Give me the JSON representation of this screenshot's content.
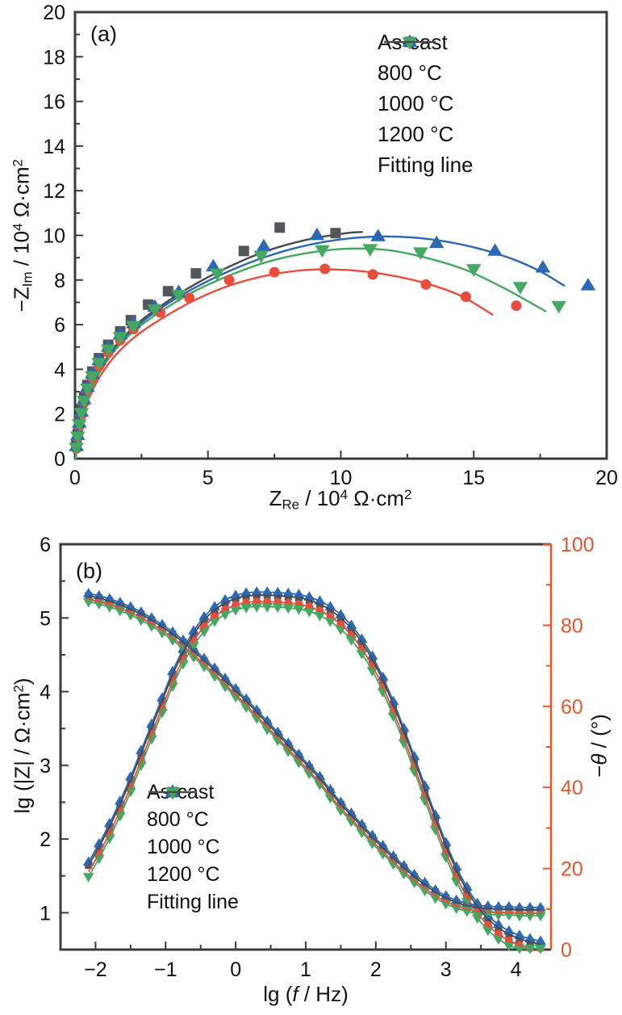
{
  "figure": {
    "background": "#ffffff"
  },
  "colors": {
    "as_cast": "#53575a",
    "c800": "#ea4d3b",
    "c1000": "#2d68b4",
    "c1200": "#45a861",
    "fit_line": "#4a4a4a",
    "axis": "#3c3c3c",
    "right_axis": "#e8542c",
    "text": "#111111"
  },
  "chart_data": [
    {
      "id": "a",
      "type": "scatter",
      "panel_label": "(a)",
      "xlabel_segments": [
        [
          "Z",
          ""
        ],
        [
          "Re",
          "sub"
        ],
        [
          " / 10",
          ""
        ],
        [
          "4",
          "sup"
        ],
        [
          " Ω·cm",
          ""
        ],
        [
          "2",
          "sup"
        ]
      ],
      "ylabel_segments": [
        [
          "−Z",
          ""
        ],
        [
          "Im",
          "sub"
        ],
        [
          " / 10",
          ""
        ],
        [
          "4",
          "sup"
        ],
        [
          " Ω·cm",
          ""
        ],
        [
          "2",
          "sup"
        ]
      ],
      "xlim": [
        0,
        20
      ],
      "ylim": [
        0,
        20
      ],
      "x_ticks": [
        0,
        5,
        10,
        15,
        20
      ],
      "x_minor_step": 2.5,
      "y_ticks": [
        0,
        2,
        4,
        6,
        8,
        10,
        12,
        14,
        16,
        18,
        20
      ],
      "y_minor_step": 1,
      "grid": false,
      "legend_position": "upper-right-inside",
      "legend": [
        {
          "label": "As-cast",
          "marker": "square",
          "color_key": "as_cast"
        },
        {
          "label": "800 °C",
          "marker": "circle",
          "color_key": "c800"
        },
        {
          "label": "1000 °C",
          "marker": "triangle-up",
          "color_key": "c1000"
        },
        {
          "label": "1200 °C",
          "marker": "triangle-down",
          "color_key": "c1200"
        },
        {
          "label": "Fitting line",
          "marker": "line",
          "color_key": "fit_line"
        }
      ],
      "series": [
        {
          "name": "As-cast",
          "marker": "square",
          "color_key": "as_cast",
          "fit_color_key": "fit_line",
          "points": [
            [
              0.05,
              0.6
            ],
            [
              0.1,
              1.1
            ],
            [
              0.16,
              1.65
            ],
            [
              0.24,
              2.2
            ],
            [
              0.34,
              2.75
            ],
            [
              0.47,
              3.3
            ],
            [
              0.65,
              3.9
            ],
            [
              0.9,
              4.5
            ],
            [
              1.25,
              5.1
            ],
            [
              1.7,
              5.7
            ],
            [
              2.1,
              6.2
            ],
            [
              2.75,
              6.9
            ],
            [
              3.5,
              7.5
            ],
            [
              4.55,
              8.3
            ],
            [
              6.35,
              9.3
            ],
            [
              7.7,
              10.35
            ],
            [
              9.8,
              10.1
            ]
          ],
          "fit": [
            [
              0.02,
              0
            ],
            [
              0.1,
              1.0
            ],
            [
              0.25,
              1.9
            ],
            [
              0.5,
              2.9
            ],
            [
              0.9,
              3.9
            ],
            [
              1.5,
              5.0
            ],
            [
              2.3,
              6.0
            ],
            [
              3.3,
              6.9
            ],
            [
              4.5,
              7.8
            ],
            [
              5.8,
              8.6
            ],
            [
              7.2,
              9.3
            ],
            [
              8.7,
              9.8
            ],
            [
              10.2,
              10.1
            ],
            [
              10.8,
              10.15
            ]
          ]
        },
        {
          "name": "800 °C",
          "marker": "circle",
          "color_key": "c800",
          "fit_color_key": "c800",
          "points": [
            [
              0.05,
              0.45
            ],
            [
              0.1,
              0.95
            ],
            [
              0.16,
              1.45
            ],
            [
              0.24,
              1.95
            ],
            [
              0.34,
              2.5
            ],
            [
              0.47,
              3.0
            ],
            [
              0.65,
              3.6
            ],
            [
              0.9,
              4.15
            ],
            [
              1.25,
              4.75
            ],
            [
              1.7,
              5.3
            ],
            [
              2.2,
              5.8
            ],
            [
              3.2,
              6.55
            ],
            [
              4.3,
              7.2
            ],
            [
              5.8,
              8.0
            ],
            [
              7.5,
              8.35
            ],
            [
              9.4,
              8.5
            ],
            [
              11.2,
              8.25
            ],
            [
              13.2,
              7.8
            ],
            [
              14.7,
              7.25
            ],
            [
              16.6,
              6.85
            ]
          ],
          "fit": [
            [
              0.02,
              0
            ],
            [
              0.1,
              0.85
            ],
            [
              0.25,
              1.7
            ],
            [
              0.5,
              2.65
            ],
            [
              0.9,
              3.6
            ],
            [
              1.5,
              4.6
            ],
            [
              2.3,
              5.5
            ],
            [
              3.3,
              6.3
            ],
            [
              4.5,
              7.1
            ],
            [
              5.8,
              7.75
            ],
            [
              7.2,
              8.2
            ],
            [
              8.7,
              8.45
            ],
            [
              10.2,
              8.45
            ],
            [
              11.7,
              8.25
            ],
            [
              13.2,
              7.85
            ],
            [
              14.5,
              7.3
            ],
            [
              15.7,
              6.45
            ]
          ]
        },
        {
          "name": "1000 °C",
          "marker": "triangle-up",
          "color_key": "c1000",
          "fit_color_key": "c1000",
          "points": [
            [
              0.05,
              0.55
            ],
            [
              0.1,
              1.05
            ],
            [
              0.16,
              1.6
            ],
            [
              0.24,
              2.1
            ],
            [
              0.34,
              2.65
            ],
            [
              0.47,
              3.2
            ],
            [
              0.65,
              3.8
            ],
            [
              0.9,
              4.4
            ],
            [
              1.25,
              5.0
            ],
            [
              1.7,
              5.55
            ],
            [
              2.2,
              6.05
            ],
            [
              3.0,
              6.8
            ],
            [
              3.9,
              7.45
            ],
            [
              5.2,
              8.6
            ],
            [
              7.1,
              9.5
            ],
            [
              9.1,
              10.0
            ],
            [
              11.4,
              9.95
            ],
            [
              13.6,
              9.65
            ],
            [
              15.8,
              9.3
            ],
            [
              17.6,
              8.55
            ],
            [
              19.3,
              7.75
            ]
          ],
          "fit": [
            [
              0.02,
              0
            ],
            [
              0.1,
              0.95
            ],
            [
              0.25,
              1.85
            ],
            [
              0.5,
              2.85
            ],
            [
              0.9,
              3.85
            ],
            [
              1.5,
              4.9
            ],
            [
              2.3,
              5.9
            ],
            [
              3.3,
              6.8
            ],
            [
              4.5,
              7.65
            ],
            [
              5.8,
              8.4
            ],
            [
              7.2,
              9.05
            ],
            [
              8.7,
              9.55
            ],
            [
              10.2,
              9.85
            ],
            [
              11.7,
              9.95
            ],
            [
              13.2,
              9.85
            ],
            [
              14.7,
              9.55
            ],
            [
              16.2,
              9.05
            ],
            [
              17.4,
              8.45
            ],
            [
              18.4,
              7.75
            ]
          ]
        },
        {
          "name": "1200 °C",
          "marker": "triangle-down",
          "color_key": "c1200",
          "fit_color_key": "c1200",
          "points": [
            [
              0.05,
              0.5
            ],
            [
              0.1,
              1.0
            ],
            [
              0.16,
              1.55
            ],
            [
              0.24,
              2.05
            ],
            [
              0.34,
              2.6
            ],
            [
              0.47,
              3.15
            ],
            [
              0.65,
              3.7
            ],
            [
              0.9,
              4.3
            ],
            [
              1.25,
              4.9
            ],
            [
              1.7,
              5.45
            ],
            [
              2.2,
              5.95
            ],
            [
              3.0,
              6.7
            ],
            [
              3.9,
              7.35
            ],
            [
              5.35,
              8.3
            ],
            [
              7.0,
              9.1
            ],
            [
              9.3,
              9.35
            ],
            [
              11.1,
              9.4
            ],
            [
              13.0,
              9.25
            ],
            [
              15.0,
              8.5
            ],
            [
              16.75,
              7.7
            ],
            [
              18.2,
              6.85
            ]
          ],
          "fit": [
            [
              0.02,
              0
            ],
            [
              0.1,
              0.9
            ],
            [
              0.25,
              1.8
            ],
            [
              0.5,
              2.8
            ],
            [
              0.9,
              3.8
            ],
            [
              1.5,
              4.85
            ],
            [
              2.3,
              5.8
            ],
            [
              3.3,
              6.65
            ],
            [
              4.5,
              7.5
            ],
            [
              5.8,
              8.2
            ],
            [
              7.2,
              8.8
            ],
            [
              8.7,
              9.2
            ],
            [
              10.2,
              9.4
            ],
            [
              11.7,
              9.35
            ],
            [
              13.2,
              9.0
            ],
            [
              14.7,
              8.45
            ],
            [
              16.2,
              7.6
            ],
            [
              17.7,
              6.6
            ]
          ]
        }
      ]
    },
    {
      "id": "b",
      "type": "line-scatter",
      "panel_label": "(b)",
      "xlabel_segments": [
        [
          "lg (",
          ""
        ],
        [
          "f",
          "italic"
        ],
        [
          " / Hz)",
          ""
        ]
      ],
      "ylabel_left_segments": [
        [
          "lg (|Z| / Ω·cm",
          ""
        ],
        [
          "2",
          "sup"
        ],
        [
          ")",
          ""
        ]
      ],
      "ylabel_right_segments": [
        [
          "−",
          ""
        ],
        [
          "θ",
          "italic"
        ],
        [
          " / (°)",
          ""
        ]
      ],
      "xlim": [
        -2.5,
        4.5
      ],
      "ylim_left": [
        0.5,
        6
      ],
      "ylim_right": [
        0,
        100
      ],
      "x_ticks": [
        -2,
        -1,
        0,
        1,
        2,
        3,
        4
      ],
      "x_minor_step": 0.5,
      "y_left_ticks": [
        1,
        2,
        3,
        4,
        5,
        6
      ],
      "y_left_minor_step": 0.5,
      "y_right_ticks": [
        0,
        20,
        40,
        60,
        80,
        100
      ],
      "y_right_minor_step": 10,
      "grid": false,
      "legend_position": "lower-center-inside",
      "legend": [
        {
          "label": "As-cast",
          "marker": "square",
          "color_key": "as_cast"
        },
        {
          "label": "800 °C",
          "marker": "circle",
          "color_key": "c800"
        },
        {
          "label": "1000 °C",
          "marker": "triangle-up",
          "color_key": "c1000"
        },
        {
          "label": "1200 °C",
          "marker": "triangle-down",
          "color_key": "c1200"
        },
        {
          "label": "Fitting line",
          "marker": "line",
          "color_key": "fit_line"
        }
      ],
      "x": [
        -2.1,
        -1.95,
        -1.8,
        -1.65,
        -1.5,
        -1.35,
        -1.2,
        -1.05,
        -0.9,
        -0.75,
        -0.6,
        -0.45,
        -0.3,
        -0.15,
        0,
        0.15,
        0.3,
        0.45,
        0.6,
        0.75,
        0.9,
        1.05,
        1.2,
        1.35,
        1.5,
        1.65,
        1.8,
        1.95,
        2.1,
        2.25,
        2.4,
        2.55,
        2.7,
        2.85,
        3,
        3.15,
        3.3,
        3.45,
        3.6,
        3.75,
        3.9,
        4.05,
        4.2,
        4.35
      ],
      "lgZ": [
        5.28,
        5.25,
        5.21,
        5.16,
        5.1,
        5.03,
        4.95,
        4.86,
        4.76,
        4.65,
        4.53,
        4.4,
        4.27,
        4.13,
        3.99,
        3.85,
        3.7,
        3.55,
        3.4,
        3.25,
        3.1,
        2.95,
        2.8,
        2.62,
        2.45,
        2.3,
        2.15,
        2,
        1.86,
        1.72,
        1.59,
        1.47,
        1.36,
        1.26,
        1.18,
        1.12,
        1.08,
        1.05,
        1.04,
        1.03,
        1.03,
        1.02,
        1.02,
        1.02
      ],
      "theta": [
        20,
        24.5,
        29.5,
        35,
        41,
        47.5,
        54,
        60.5,
        67,
        72.5,
        77,
        80.5,
        83,
        84.7,
        85.8,
        86.4,
        86.6,
        86.6,
        86.5,
        86.3,
        86,
        85.4,
        84.4,
        83,
        81,
        78.4,
        75,
        70.8,
        65.6,
        59.6,
        53,
        46,
        38.8,
        31.6,
        24.8,
        18.8,
        13.8,
        9.8,
        6.8,
        4.6,
        3,
        1.9,
        1.1,
        0.5
      ],
      "series": [
        {
          "name": "As-cast",
          "marker": "square",
          "color_key": "as_cast",
          "fit_color_key": "fit_line",
          "dz": 0.02,
          "dtheta": 0.8,
          "x_skip": 0
        },
        {
          "name": "800 °C",
          "marker": "circle",
          "color_key": "c800",
          "fit_color_key": "c800",
          "dz": -0.03,
          "dtheta": -0.8,
          "x_skip": 1
        },
        {
          "name": "1000 °C",
          "marker": "triangle-up",
          "color_key": "c1000",
          "fit_color_key": "c1000",
          "dz": 0.05,
          "dtheta": 1.6,
          "x_skip": 0
        },
        {
          "name": "1200 °C",
          "marker": "triangle-down",
          "color_key": "c1200",
          "fit_color_key": "c1200",
          "dz": -0.06,
          "dtheta": -2.0,
          "x_skip": 0
        }
      ]
    }
  ]
}
